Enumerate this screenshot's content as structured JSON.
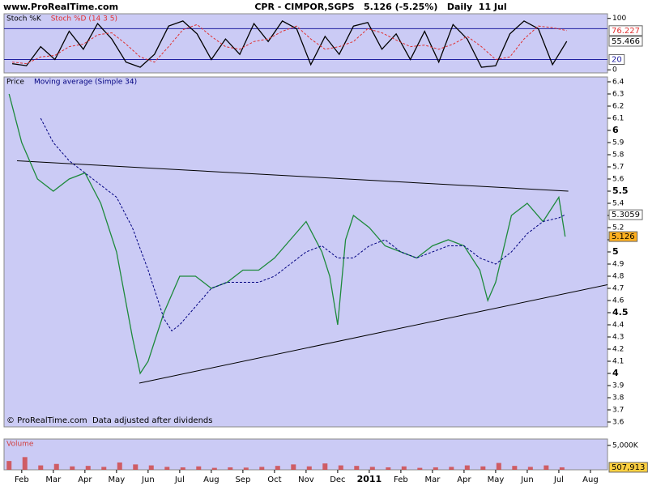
{
  "header": {
    "site": "www.ProRealTime.com",
    "title": "CPR - CIMPOR,SGPS   5.126 (-5.25%)   Daily  11 Jul"
  },
  "chart_data": [
    {
      "type": "line",
      "xlim": [
        -0.56,
        18.54
      ],
      "ylim": [
        -6,
        109
      ],
      "yticks": [
        0,
        100
      ],
      "levels": [
        80,
        20
      ],
      "series": [
        {
          "name": "Stoch %K",
          "color": "#000000",
          "x": [
            -0.3,
            0.15,
            0.6,
            1.05,
            1.5,
            1.95,
            2.4,
            2.85,
            3.3,
            3.75,
            4.2,
            4.65,
            5.1,
            5.55,
            6,
            6.45,
            6.9,
            7.35,
            7.8,
            8.25,
            8.7,
            9.15,
            9.6,
            10.05,
            10.5,
            10.95,
            11.4,
            11.85,
            12.3,
            12.75,
            13.2,
            13.65,
            14.1,
            14.55,
            15,
            15.45,
            15.9,
            16.35,
            16.8,
            17.25
          ],
          "values": [
            12,
            8,
            45,
            20,
            75,
            40,
            90,
            60,
            15,
            5,
            30,
            85,
            95,
            70,
            20,
            60,
            30,
            90,
            55,
            95,
            80,
            10,
            65,
            30,
            85,
            92,
            40,
            70,
            20,
            75,
            15,
            88,
            60,
            5,
            8,
            70,
            95,
            80,
            10,
            55.466
          ]
        },
        {
          "name": "Stoch %D (14 3 5)",
          "color": "#e03030",
          "dashed": true,
          "x": [
            -0.3,
            0.15,
            0.6,
            1.05,
            1.5,
            1.95,
            2.4,
            2.85,
            3.3,
            3.75,
            4.2,
            4.65,
            5.1,
            5.55,
            6,
            6.45,
            6.9,
            7.35,
            7.8,
            8.25,
            8.7,
            9.15,
            9.6,
            10.05,
            10.5,
            10.95,
            11.4,
            11.85,
            12.3,
            12.75,
            13.2,
            13.65,
            14.1,
            14.55,
            15,
            15.45,
            15.9,
            16.35,
            16.8,
            17.25
          ],
          "values": [
            15,
            12,
            25,
            28,
            45,
            50,
            68,
            72,
            50,
            25,
            15,
            45,
            78,
            88,
            65,
            45,
            40,
            55,
            60,
            75,
            85,
            60,
            40,
            45,
            55,
            80,
            72,
            58,
            45,
            48,
            40,
            50,
            65,
            45,
            20,
            25,
            60,
            85,
            82,
            76.227
          ]
        }
      ]
    },
    {
      "type": "line",
      "xlim": [
        -0.56,
        18.54
      ],
      "ylim": [
        3.56,
        6.44
      ],
      "yticks": [
        3.6,
        3.7,
        3.8,
        3.9,
        4,
        4.1,
        4.2,
        4.3,
        4.4,
        4.5,
        4.6,
        4.7,
        4.8,
        4.9,
        5,
        5.1,
        5.2,
        5.3,
        5.4,
        5.5,
        5.6,
        5.7,
        5.8,
        5.9,
        6,
        6.1,
        6.2,
        6.3,
        6.4
      ],
      "note": "© ProRealTime.com  Data adjusted after dividends",
      "series": [
        {
          "name": "Price",
          "color": "#1e8a3c",
          "x": [
            -0.4,
            0,
            0.5,
            1,
            1.5,
            2,
            2.5,
            3,
            3.5,
            3.75,
            4,
            4.25,
            4.5,
            5,
            5.5,
            6,
            6.5,
            7,
            7.5,
            8,
            8.5,
            9,
            9.5,
            9.75,
            10,
            10.25,
            10.5,
            11,
            11.5,
            12,
            12.5,
            13,
            13.5,
            14,
            14.5,
            14.75,
            15,
            15.5,
            16,
            16.5,
            17,
            17.2
          ],
          "values": [
            6.3,
            5.9,
            5.6,
            5.5,
            5.6,
            5.65,
            5.4,
            5.0,
            4.3,
            4.0,
            4.1,
            4.3,
            4.5,
            4.8,
            4.8,
            4.7,
            4.75,
            4.85,
            4.85,
            4.95,
            5.1,
            5.25,
            5.0,
            4.8,
            4.4,
            5.1,
            5.3,
            5.2,
            5.05,
            5.0,
            4.95,
            5.05,
            5.1,
            5.05,
            4.85,
            4.6,
            4.75,
            5.3,
            5.4,
            5.25,
            5.45,
            5.126
          ]
        },
        {
          "name": "Moving average (Simple 34)",
          "color": "#000080",
          "dashed": true,
          "x": [
            0.6,
            1,
            1.5,
            2,
            2.5,
            3,
            3.5,
            4,
            4.5,
            4.75,
            5,
            5.5,
            6,
            6.5,
            7,
            7.5,
            8,
            8.5,
            9,
            9.5,
            10,
            10.5,
            11,
            11.5,
            12,
            12.5,
            13,
            13.5,
            14,
            14.5,
            15,
            15.5,
            16,
            16.5,
            17,
            17.2
          ],
          "values": [
            6.1,
            5.9,
            5.75,
            5.65,
            5.55,
            5.45,
            5.2,
            4.85,
            4.45,
            4.35,
            4.4,
            4.55,
            4.7,
            4.75,
            4.75,
            4.75,
            4.8,
            4.9,
            5.0,
            5.05,
            4.95,
            4.95,
            5.05,
            5.1,
            5.0,
            4.95,
            5.0,
            5.05,
            5.05,
            4.95,
            4.9,
            5.0,
            5.15,
            5.25,
            5.28,
            5.3059
          ]
        }
      ],
      "trendlines": [
        {
          "x": [
            -0.15,
            17.3
          ],
          "values": [
            5.75,
            5.5
          ]
        },
        {
          "x": [
            3.72,
            18.54
          ],
          "values": [
            3.92,
            4.73
          ]
        }
      ]
    },
    {
      "type": "bar",
      "xlim": [
        -0.56,
        18.54
      ],
      "ylim": [
        0,
        6300000
      ],
      "yticks": [
        {
          "value": 5000000,
          "label": "5,000K"
        }
      ],
      "xticks": [
        {
          "value": 0,
          "label": "Feb"
        },
        {
          "value": 1,
          "label": "Mar"
        },
        {
          "value": 2,
          "label": "Apr"
        },
        {
          "value": 3,
          "label": "May"
        },
        {
          "value": 4,
          "label": "Jun"
        },
        {
          "value": 5,
          "label": "Jul"
        },
        {
          "value": 6,
          "label": "Aug"
        },
        {
          "value": 7,
          "label": "Sep"
        },
        {
          "value": 8,
          "label": "Oct"
        },
        {
          "value": 9,
          "label": "Nov"
        },
        {
          "value": 10,
          "label": "Dec"
        },
        {
          "value": 11,
          "label": "2011"
        },
        {
          "value": 12,
          "label": "Feb"
        },
        {
          "value": 13,
          "label": "Mar"
        },
        {
          "value": 14,
          "label": "Apr"
        },
        {
          "value": 15,
          "label": "May"
        },
        {
          "value": 16,
          "label": "Jun"
        },
        {
          "value": 17,
          "label": "Jul"
        },
        {
          "value": 18,
          "label": "Aug"
        }
      ],
      "series": [
        {
          "name": "Volume",
          "color": "#d04040",
          "x": [
            -0.4,
            0.1,
            0.6,
            1.1,
            1.6,
            2.1,
            2.6,
            3.1,
            3.6,
            4.1,
            4.6,
            5.1,
            5.6,
            6.1,
            6.6,
            7.1,
            7.6,
            8.1,
            8.6,
            9.1,
            9.6,
            10.1,
            10.6,
            11.1,
            11.6,
            12.1,
            12.6,
            13.1,
            13.6,
            14.1,
            14.6,
            15.1,
            15.6,
            16.1,
            16.6,
            17.1
          ],
          "values": [
            1800000,
            2600000,
            900000,
            1200000,
            700000,
            800000,
            600000,
            1500000,
            1100000,
            900000,
            600000,
            500000,
            700000,
            400000,
            500000,
            450000,
            600000,
            800000,
            1100000,
            700000,
            1300000,
            900000,
            800000,
            600000,
            500000,
            700000,
            400000,
            500000,
            600000,
            900000,
            700000,
            1400000,
            800000,
            600000,
            900000,
            507913
          ],
          "value_labels": [
            null,
            null,
            null,
            null,
            null,
            null,
            null,
            null,
            null,
            null,
            null,
            null,
            null,
            null,
            null,
            null,
            null,
            null,
            null,
            null,
            null,
            null,
            null,
            null,
            null,
            null,
            null,
            null,
            null,
            null,
            null,
            null,
            null,
            null,
            null,
            "507,913"
          ]
        }
      ]
    }
  ]
}
